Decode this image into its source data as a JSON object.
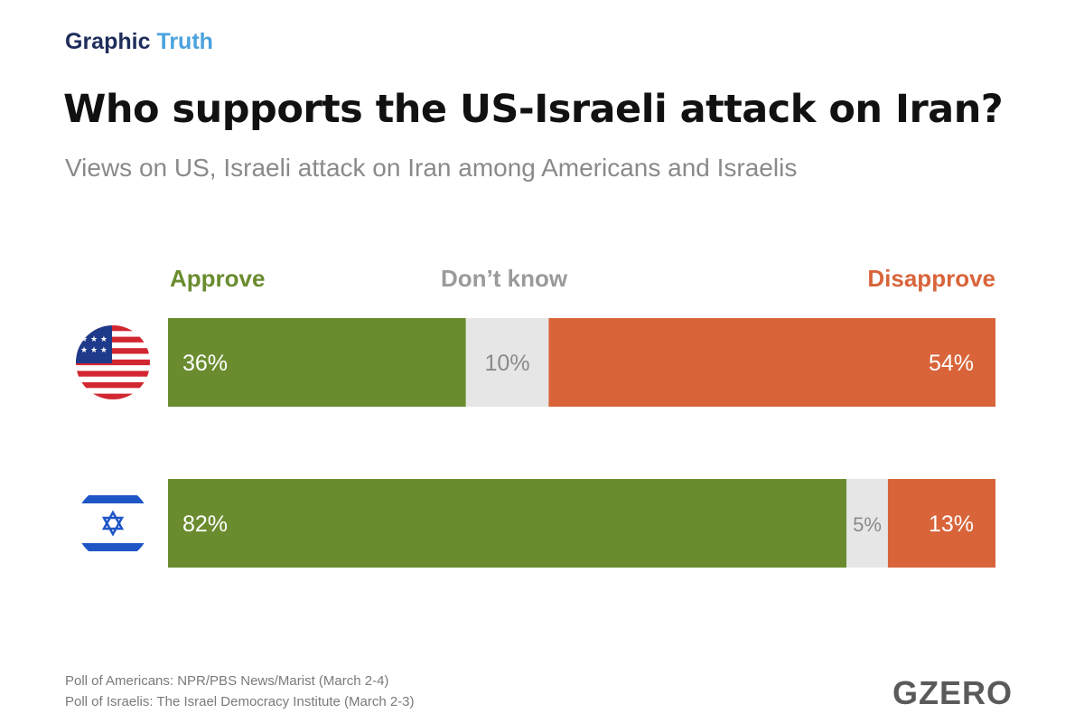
{
  "brand": {
    "word1": "Graphic",
    "word2": "Truth"
  },
  "title": "Who supports the US-Israeli attack on Iran?",
  "subtitle": "Views on US, Israeli attack on Iran among Americans and Israelis",
  "colors": {
    "approve": "#6a8c2f",
    "dont_know": "#e6e6e6",
    "disapprove": "#d9643a",
    "brand_dark": "#1f2d5c",
    "brand_light": "#4aa3df"
  },
  "chart_data": {
    "type": "bar",
    "orientation": "horizontal",
    "stacked": true,
    "percent_stacked": true,
    "title": "Who supports the US-Israeli attack on Iran?",
    "categories": [
      "United States",
      "Israel"
    ],
    "category_icons": [
      "us-flag-icon",
      "israel-flag-icon"
    ],
    "series": [
      {
        "name": "Approve",
        "values": [
          36,
          82
        ],
        "labels": [
          "36%",
          "82%"
        ]
      },
      {
        "name": "Don’t know",
        "values": [
          10,
          5
        ],
        "labels": [
          "10%",
          "5%"
        ]
      },
      {
        "name": "Disapprove",
        "values": [
          54,
          13
        ],
        "labels": [
          "54%",
          "13%"
        ]
      }
    ],
    "xlim": [
      0,
      100
    ],
    "legend": "top",
    "grid": false
  },
  "footer": {
    "line1": "Poll of Americans: NPR/PBS News/Marist (March 2-4)",
    "line2": "Poll of Israelis: The Israel Democracy Institute (March 2-3)"
  },
  "logo": "GZERO"
}
